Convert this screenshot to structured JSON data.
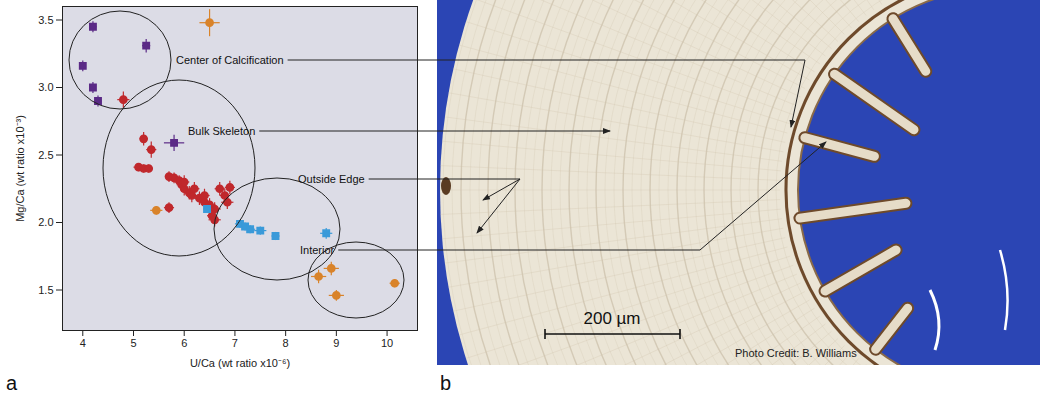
{
  "chart_data": {
    "type": "scatter",
    "x_label": "U/Ca (wt ratio x10⁻⁶)",
    "y_label": "Mg/Ca (wt ratio x10⁻³)",
    "xlim": [
      3.6,
      10.6
    ],
    "xticks": [
      4,
      5,
      6,
      7,
      8,
      9,
      10
    ],
    "ylim": [
      1.2,
      3.6
    ],
    "yticks": [
      1.5,
      {
        "value": 2,
        "label": "2.0"
      },
      2.5,
      {
        "value": 3,
        "label": "3.0"
      },
      3.5
    ],
    "grid": false,
    "panel_label": "a",
    "annotations": [
      "Center of Calcification",
      "Bulk Skeleton",
      "Outside Edge",
      "Interior"
    ],
    "series": [
      {
        "color": "#5b2a86",
        "marker": "square",
        "x": [
          4.2,
          5.25,
          4.0,
          4.2,
          4.3,
          5.8
        ],
        "values": [
          3.45,
          3.31,
          3.16,
          3.0,
          2.9,
          2.59
        ],
        "x_error": [
          0.07,
          0.08,
          0.06,
          0.06,
          0.07,
          0.2
        ],
        "y_error": [
          0.04,
          0.05,
          0.04,
          0.04,
          0.04,
          0.06
        ]
      },
      {
        "color": "#c0282c",
        "marker": "circle",
        "x": [
          4.8,
          5.2,
          5.35,
          5.1,
          5.2,
          5.3,
          5.7,
          5.8,
          5.9,
          5.95,
          6.0,
          6.1,
          6.15,
          6.3,
          6.4,
          6.5,
          6.6,
          6.7,
          6.8,
          6.9,
          6.85,
          6.55,
          5.7,
          6.6,
          6.0,
          6.2,
          6.4
        ],
        "values": [
          2.91,
          2.62,
          2.54,
          2.41,
          2.4,
          2.4,
          2.34,
          2.33,
          2.31,
          2.28,
          2.25,
          2.22,
          2.2,
          2.18,
          2.15,
          2.13,
          2.1,
          2.25,
          2.2,
          2.26,
          2.15,
          2.05,
          2.11,
          2.02,
          2.3,
          2.25,
          2.2
        ],
        "x_error": [
          0.12,
          0.08,
          0.1,
          0.1,
          0.08,
          0.08,
          0.08,
          0.1,
          0.1,
          0.1,
          0.08,
          0.1,
          0.1,
          0.1,
          0.1,
          0.12,
          0.12,
          0.1,
          0.1,
          0.1,
          0.12,
          0.1,
          0.1,
          0.12,
          0.1,
          0.1,
          0.1
        ],
        "y_error": [
          0.06,
          0.05,
          0.06,
          0.03,
          0.03,
          0.03,
          0.04,
          0.04,
          0.04,
          0.05,
          0.05,
          0.05,
          0.05,
          0.05,
          0.05,
          0.05,
          0.05,
          0.05,
          0.05,
          0.05,
          0.05,
          0.05,
          0.04,
          0.05,
          0.05,
          0.05,
          0.05
        ]
      },
      {
        "color": "#3a9ad9",
        "marker": "square",
        "x": [
          7.1,
          7.2,
          7.3,
          7.5,
          7.8,
          8.8,
          6.45
        ],
        "values": [
          1.99,
          1.97,
          1.95,
          1.94,
          1.9,
          1.92,
          2.1
        ],
        "x_error": [
          0.1,
          0.1,
          0.1,
          0.12,
          0.08,
          0.12,
          0.08
        ],
        "y_error": [
          0.03,
          0.03,
          0.03,
          0.03,
          0.03,
          0.04,
          0.03
        ]
      },
      {
        "color": "#d9832a",
        "marker": "circle",
        "x": [
          6.5,
          5.45,
          8.65,
          8.9,
          9.0,
          10.15
        ],
        "values": [
          3.48,
          2.09,
          1.6,
          1.66,
          1.46,
          1.55
        ],
        "x_error": [
          0.2,
          0.12,
          0.15,
          0.15,
          0.15,
          0.1
        ],
        "y_error": [
          0.1,
          0.03,
          0.05,
          0.05,
          0.04,
          0.03
        ]
      }
    ]
  },
  "figure": {
    "panel_label": "b",
    "scale_bar": "200 µm",
    "credit": "Photo Credit: B. Williams"
  }
}
